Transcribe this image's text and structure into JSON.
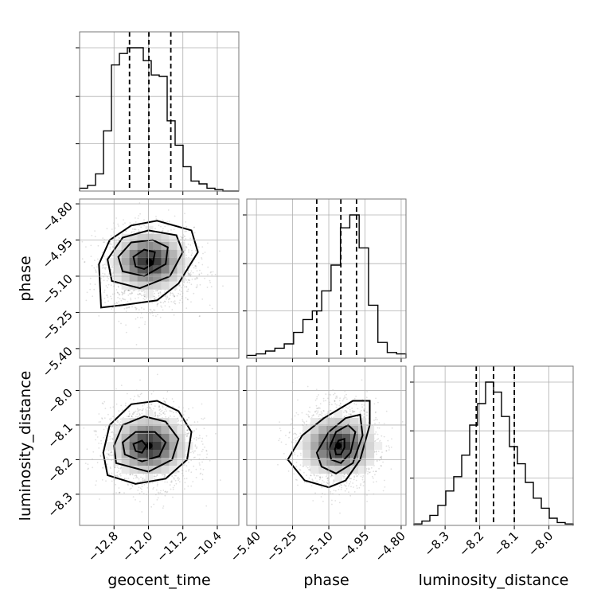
{
  "chart_data": {
    "type": "corner",
    "parameters": [
      {
        "name": "geocent_time",
        "range": [
          -13.6,
          -9.9
        ],
        "ticks": [
          -12.8,
          -12.0,
          -11.2,
          -10.4
        ],
        "tick_labels": [
          "−12.8",
          "−12.0",
          "−11.2",
          "−10.4"
        ],
        "quantiles": [
          -12.44,
          -11.99,
          -11.48
        ],
        "hist_counts": [
          0.02,
          0.04,
          0.12,
          0.42,
          0.88,
          0.96,
          1.0,
          1.0,
          0.91,
          0.81,
          0.8,
          0.49,
          0.32,
          0.17,
          0.07,
          0.05,
          0.02,
          0.01,
          0.0,
          0.0
        ],
        "mean": -11.98,
        "sd": 0.45
      },
      {
        "name": "phase",
        "range": [
          -5.44,
          -4.78
        ],
        "ticks": [
          -5.4,
          -5.25,
          -5.1,
          -4.95,
          -4.8
        ],
        "tick_labels": [
          "−5.40",
          "−5.25",
          "−5.10",
          "−4.95",
          "−4.80"
        ],
        "quantiles": [
          -5.15,
          -5.05,
          -4.985
        ],
        "hist_counts": [
          0.02,
          0.03,
          0.05,
          0.07,
          0.1,
          0.18,
          0.27,
          0.33,
          0.47,
          0.65,
          0.91,
          1.0,
          0.77,
          0.37,
          0.11,
          0.04,
          0.03
        ],
        "mean": -5.06,
        "sd": 0.07
      },
      {
        "name": "luminosity_distance",
        "range": [
          -8.39,
          -7.93
        ],
        "ticks": [
          -8.3,
          -8.2,
          -8.1,
          -8.0
        ],
        "tick_labels": [
          "−8.3",
          "−8.2",
          "−8.1",
          "−8.0"
        ],
        "quantiles": [
          -8.21,
          -8.16,
          -8.1
        ],
        "hist_counts": [
          0.01,
          0.03,
          0.07,
          0.14,
          0.24,
          0.34,
          0.49,
          0.7,
          0.85,
          1.0,
          0.93,
          0.76,
          0.55,
          0.43,
          0.3,
          0.19,
          0.12,
          0.05,
          0.02,
          0.01
        ],
        "mean": -8.16,
        "sd": 0.05
      }
    ],
    "pairs": [
      {
        "x": "geocent_time",
        "y": "phase",
        "center": [
          -11.98,
          -5.04
        ],
        "contours": [
          [
            [
              -13.1,
              -5.23
            ],
            [
              -13.15,
              -5.05
            ],
            [
              -12.9,
              -4.95
            ],
            [
              -12.4,
              -4.89
            ],
            [
              -11.8,
              -4.87
            ],
            [
              -11.0,
              -4.91
            ],
            [
              -10.85,
              -5.0
            ],
            [
              -11.3,
              -5.13
            ],
            [
              -11.8,
              -5.2
            ],
            [
              -12.6,
              -5.22
            ]
          ],
          [
            [
              -12.85,
              -5.12
            ],
            [
              -12.95,
              -5.03
            ],
            [
              -12.6,
              -4.94
            ],
            [
              -12.0,
              -4.91
            ],
            [
              -11.35,
              -4.93
            ],
            [
              -11.2,
              -5.0
            ],
            [
              -11.5,
              -5.1
            ],
            [
              -12.2,
              -5.15
            ]
          ],
          [
            [
              -12.6,
              -5.08
            ],
            [
              -12.7,
              -5.02
            ],
            [
              -12.4,
              -4.96
            ],
            [
              -11.9,
              -4.95
            ],
            [
              -11.55,
              -4.98
            ],
            [
              -11.6,
              -5.05
            ],
            [
              -12.1,
              -5.1
            ]
          ],
          [
            [
              -12.3,
              -5.06
            ],
            [
              -12.35,
              -5.02
            ],
            [
              -12.1,
              -4.99
            ],
            [
              -11.85,
              -5.0
            ],
            [
              -11.9,
              -5.05
            ],
            [
              -12.1,
              -5.07
            ]
          ]
        ]
      },
      {
        "x": "geocent_time",
        "y": "luminosity_distance",
        "center": [
          -11.98,
          -8.16
        ],
        "contours": [
          [
            [
              -12.95,
              -8.245
            ],
            [
              -13.05,
              -8.18
            ],
            [
              -12.9,
              -8.1
            ],
            [
              -12.4,
              -8.04
            ],
            [
              -11.8,
              -8.03
            ],
            [
              -11.3,
              -8.06
            ],
            [
              -11.0,
              -8.12
            ],
            [
              -11.1,
              -8.2
            ],
            [
              -11.6,
              -8.255
            ],
            [
              -12.3,
              -8.27
            ]
          ],
          [
            [
              -12.75,
              -8.21
            ],
            [
              -12.8,
              -8.16
            ],
            [
              -12.6,
              -8.1
            ],
            [
              -12.1,
              -8.075
            ],
            [
              -11.6,
              -8.09
            ],
            [
              -11.3,
              -8.14
            ],
            [
              -11.45,
              -8.2
            ],
            [
              -12.0,
              -8.235
            ]
          ],
          [
            [
              -12.55,
              -8.185
            ],
            [
              -12.6,
              -8.15
            ],
            [
              -12.3,
              -8.12
            ],
            [
              -11.85,
              -8.12
            ],
            [
              -11.6,
              -8.15
            ],
            [
              -11.75,
              -8.19
            ],
            [
              -12.15,
              -8.205
            ]
          ],
          [
            [
              -12.3,
              -8.175
            ],
            [
              -12.35,
              -8.155
            ],
            [
              -12.15,
              -8.145
            ],
            [
              -12.05,
              -8.16
            ],
            [
              -12.15,
              -8.18
            ]
          ]
        ]
      },
      {
        "x": "phase",
        "y": "luminosity_distance",
        "center": [
          -5.06,
          -8.16
        ],
        "contours": [
          [
            [
              -5.27,
              -8.2
            ],
            [
              -5.21,
              -8.13
            ],
            [
              -5.12,
              -8.08
            ],
            [
              -5.0,
              -8.03
            ],
            [
              -4.93,
              -8.03
            ],
            [
              -4.93,
              -8.1
            ],
            [
              -4.97,
              -8.2
            ],
            [
              -5.03,
              -8.26
            ],
            [
              -5.1,
              -8.28
            ],
            [
              -5.2,
              -8.26
            ]
          ],
          [
            [
              -5.15,
              -8.18
            ],
            [
              -5.1,
              -8.12
            ],
            [
              -5.03,
              -8.08
            ],
            [
              -4.97,
              -8.07
            ],
            [
              -4.96,
              -8.13
            ],
            [
              -5.0,
              -8.21
            ],
            [
              -5.07,
              -8.24
            ],
            [
              -5.13,
              -8.22
            ]
          ],
          [
            [
              -5.1,
              -8.17
            ],
            [
              -5.07,
              -8.12
            ],
            [
              -5.02,
              -8.1
            ],
            [
              -4.99,
              -8.12
            ],
            [
              -5.01,
              -8.18
            ],
            [
              -5.05,
              -8.21
            ],
            [
              -5.09,
              -8.2
            ]
          ],
          [
            [
              -5.075,
              -8.17
            ],
            [
              -5.06,
              -8.145
            ],
            [
              -5.035,
              -8.14
            ],
            [
              -5.035,
              -8.165
            ],
            [
              -5.05,
              -8.185
            ],
            [
              -5.07,
              -8.185
            ]
          ]
        ]
      }
    ]
  }
}
